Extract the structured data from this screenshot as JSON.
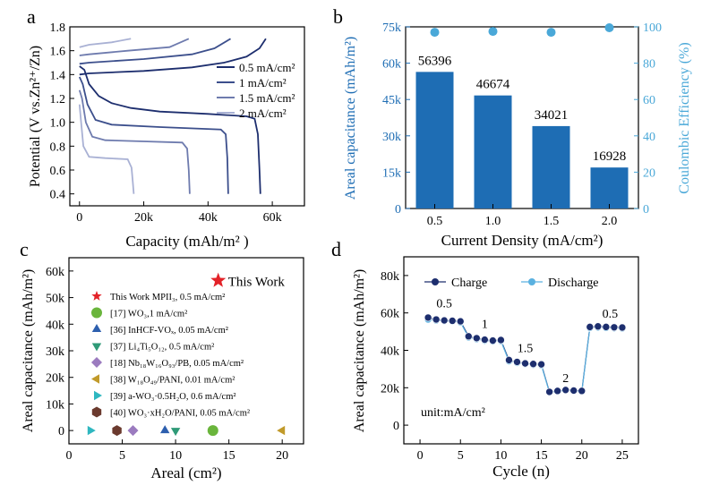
{
  "chart_data": [
    {
      "panel": "a",
      "type": "line",
      "xlabel": "Capacity (mAh/m² )",
      "ylabel": "Potential (V vs.Zn²⁺/Zn)",
      "xlim": [
        -3000,
        70000
      ],
      "ylim": [
        0.3,
        1.8
      ],
      "x_ticks": [
        0,
        20000,
        40000,
        60000
      ],
      "x_tick_labels": [
        "0",
        "20k",
        "40k",
        "60k"
      ],
      "y_ticks": [
        0.4,
        0.6,
        0.8,
        1.0,
        1.2,
        1.4,
        1.6,
        1.8
      ],
      "y_tick_labels": [
        "0.4",
        "0.6",
        "0.8",
        "1.0",
        "1.2",
        "1.4",
        "1.6",
        "1.8"
      ],
      "series": [
        {
          "name": "0.5 mA/cm²",
          "color": "#1d2e6e",
          "discharge": [
            [
              0,
              1.47
            ],
            [
              1500,
              1.44
            ],
            [
              3000,
              1.32
            ],
            [
              6000,
              1.22
            ],
            [
              10000,
              1.16
            ],
            [
              16000,
              1.12
            ],
            [
              25000,
              1.09
            ],
            [
              40000,
              1.07
            ],
            [
              52000,
              1.05
            ],
            [
              54500,
              1.03
            ],
            [
              55500,
              0.9
            ],
            [
              56000,
              0.6
            ],
            [
              56300,
              0.4
            ]
          ],
          "charge": [
            [
              0,
              1.4
            ],
            [
              3000,
              1.41
            ],
            [
              20000,
              1.43
            ],
            [
              35000,
              1.46
            ],
            [
              45000,
              1.5
            ],
            [
              52000,
              1.55
            ],
            [
              56000,
              1.62
            ],
            [
              58000,
              1.7
            ]
          ]
        },
        {
          "name": "1 mA/cm²",
          "color": "#3c4f8c",
          "discharge": [
            [
              0,
              1.38
            ],
            [
              1000,
              1.32
            ],
            [
              2500,
              1.15
            ],
            [
              5000,
              1.02
            ],
            [
              10000,
              0.98
            ],
            [
              25000,
              0.96
            ],
            [
              44000,
              0.94
            ],
            [
              45500,
              0.9
            ],
            [
              46000,
              0.7
            ],
            [
              46300,
              0.4
            ]
          ],
          "charge": [
            [
              0,
              1.49
            ],
            [
              3000,
              1.5
            ],
            [
              20000,
              1.53
            ],
            [
              35000,
              1.57
            ],
            [
              42000,
              1.62
            ],
            [
              47000,
              1.7
            ]
          ]
        },
        {
          "name": "1.5 mA/cm²",
          "color": "#6e7bae",
          "discharge": [
            [
              0,
              1.27
            ],
            [
              800,
              1.2
            ],
            [
              2000,
              1.0
            ],
            [
              4000,
              0.88
            ],
            [
              8000,
              0.85
            ],
            [
              20000,
              0.84
            ],
            [
              32000,
              0.83
            ],
            [
              33500,
              0.78
            ],
            [
              34000,
              0.6
            ],
            [
              34300,
              0.4
            ]
          ],
          "charge": [
            [
              0,
              1.56
            ],
            [
              3000,
              1.57
            ],
            [
              15000,
              1.6
            ],
            [
              28000,
              1.63
            ],
            [
              34000,
              1.7
            ]
          ]
        },
        {
          "name": "2 mA/cm²",
          "color": "#a9b1d4",
          "discharge": [
            [
              0,
              1.15
            ],
            [
              500,
              1.0
            ],
            [
              1200,
              0.8
            ],
            [
              3000,
              0.71
            ],
            [
              8000,
              0.7
            ],
            [
              15000,
              0.69
            ],
            [
              16200,
              0.62
            ],
            [
              16600,
              0.5
            ],
            [
              16900,
              0.4
            ]
          ],
          "charge": [
            [
              0,
              1.63
            ],
            [
              3000,
              1.65
            ],
            [
              10000,
              1.67
            ],
            [
              16000,
              1.7
            ]
          ]
        }
      ]
    },
    {
      "panel": "b",
      "type": "bar",
      "xlabel": "Current Density (mA/cm²)",
      "ylabel": "Areal capacitance (mAh/m²)",
      "y2label": "Coulombic Efficiency (%)",
      "categories": [
        "0.5",
        "1.0",
        "1.5",
        "2.0"
      ],
      "values": [
        56396,
        46674,
        34021,
        16928
      ],
      "value_labels": [
        "56396",
        "46674",
        "34021",
        "16928"
      ],
      "coulombic_efficiency": [
        97,
        97.5,
        97,
        99.5
      ],
      "ylim": [
        0,
        75000
      ],
      "y_ticks": [
        0,
        15000,
        30000,
        45000,
        60000,
        75000
      ],
      "y_tick_labels": [
        "0",
        "15k",
        "30k",
        "45k",
        "60k",
        "75k"
      ],
      "y2lim": [
        0,
        100
      ],
      "y2_ticks": [
        0,
        20,
        40,
        60,
        80,
        100
      ],
      "y2_tick_labels": [
        "0",
        "20",
        "40",
        "60",
        "80",
        "100"
      ],
      "bar_color": "#1e6db4",
      "ce_color": "#4aa8d8"
    },
    {
      "panel": "c",
      "type": "scatter",
      "xlabel": "Areal (cm²)",
      "ylabel": "Areal capacitance (mAh/m²)",
      "xlim": [
        0,
        22
      ],
      "ylim": [
        -5000,
        65000
      ],
      "x_ticks": [
        0,
        5,
        10,
        15,
        20
      ],
      "x_tick_labels": [
        "0",
        "5",
        "10",
        "15",
        "20"
      ],
      "y_ticks": [
        0,
        10000,
        20000,
        30000,
        40000,
        50000,
        60000
      ],
      "y_tick_labels": [
        "0",
        "10k",
        "20k",
        "30k",
        "40k",
        "50k",
        "60k"
      ],
      "highlight": {
        "label": "This Work",
        "x": 14,
        "y": 56396,
        "marker": "star",
        "color": "#e32228"
      },
      "series": [
        {
          "name": "This Work MPII₃, 0.5 mA/cm²",
          "marker": "star",
          "color": "#e32228"
        },
        {
          "name": "[17] WO₃,1 mA/cm²",
          "marker": "circle",
          "color": "#6ab53c",
          "x": 13.5,
          "y": 0
        },
        {
          "name": "[36] InHCF-VOₓ, 0.05 mA/cm²",
          "marker": "triangle-up",
          "color": "#2d5fae",
          "x": 9,
          "y": 0
        },
        {
          "name": "[37] Li₄Ti₅O₁₂, 0.5 mA/cm²",
          "marker": "triangle-down",
          "color": "#2f9a77",
          "x": 10,
          "y": 0
        },
        {
          "name": "[18] Nb₁₈W₁₆O₉₃/PB, 0.05 mA/cm²",
          "marker": "diamond",
          "color": "#9b7bbf",
          "x": 6,
          "y": 0
        },
        {
          "name": "[38] W₁₈O₄₉/PANI, 0.01 mA/cm²",
          "marker": "triangle-left",
          "color": "#c19a2a",
          "x": 20,
          "y": 0
        },
        {
          "name": "[39] a-WO₃·0.5H₂O, 0.6 mA/cm²",
          "marker": "triangle-right",
          "color": "#2fb7c0",
          "x": 2,
          "y": 0
        },
        {
          "name": "[40] WO₃·xH₂O/PANI, 0.05 mA/cm²",
          "marker": "hexagon",
          "color": "#6b3a2e",
          "x": 4.5,
          "y": 0
        }
      ]
    },
    {
      "panel": "d",
      "type": "line",
      "xlabel": "Cycle (n)",
      "ylabel": "Areal capacitance (mAh/m²)",
      "annotation": "unit:mA/cm²",
      "xlim": [
        -2,
        27
      ],
      "ylim": [
        -10000,
        90000
      ],
      "x_ticks": [
        0,
        5,
        10,
        15,
        20,
        25
      ],
      "x_tick_labels": [
        "0",
        "5",
        "10",
        "15",
        "20",
        "25"
      ],
      "y_ticks": [
        0,
        20000,
        40000,
        60000,
        80000
      ],
      "y_tick_labels": [
        "0",
        "20k",
        "40k",
        "60k",
        "80k"
      ],
      "rate_labels": [
        {
          "text": "0.5",
          "x": 3,
          "y": 63000
        },
        {
          "text": "1",
          "x": 8,
          "y": 52000
        },
        {
          "text": "1.5",
          "x": 13,
          "y": 39000
        },
        {
          "text": "2",
          "x": 18,
          "y": 23000
        },
        {
          "text": "0.5",
          "x": 23.5,
          "y": 57500
        }
      ],
      "x": [
        1,
        2,
        3,
        4,
        5,
        6,
        7,
        8,
        9,
        10,
        11,
        12,
        13,
        14,
        15,
        16,
        17,
        18,
        19,
        20,
        21,
        22,
        23,
        24,
        25
      ],
      "series": [
        {
          "name": "Charge",
          "color": "#1d2e6e",
          "values": [
            57500,
            56500,
            56000,
            55800,
            55500,
            47500,
            46500,
            45700,
            45200,
            45500,
            34800,
            33800,
            33000,
            32700,
            32500,
            17800,
            18300,
            18800,
            18500,
            18300,
            52500,
            52800,
            52500,
            52300,
            52200
          ]
        },
        {
          "name": "Discharge",
          "color": "#5ab1e0",
          "values": [
            56500,
            56000,
            55700,
            55500,
            55000,
            47000,
            46000,
            45200,
            44800,
            45000,
            34200,
            33300,
            32700,
            32300,
            32000,
            17500,
            18000,
            18500,
            18200,
            18000,
            52000,
            52300,
            52000,
            51900,
            51800
          ]
        }
      ]
    }
  ]
}
